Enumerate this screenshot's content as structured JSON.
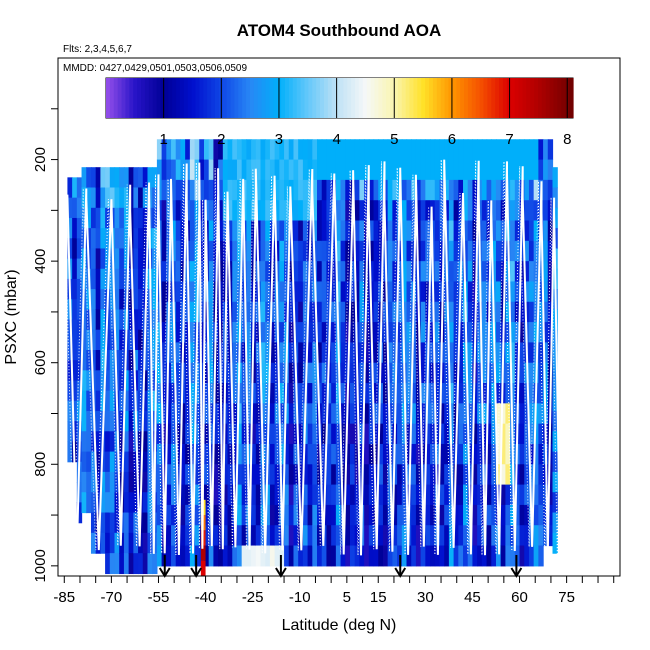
{
  "chart_data": {
    "type": "heatmap",
    "title": "ATOM4 Southbound AOA",
    "flights_note": "Flts: 2,3,4,5,6,7",
    "dates_note": "MMDD: 0427,0429,0501,0503,0506,0509",
    "xlabel": "Latitude (deg N)",
    "ylabel": "PSXC (mbar)",
    "xlim": [
      -87,
      92
    ],
    "ylim": [
      1020,
      0
    ],
    "x_ticks": [
      -85,
      -70,
      -55,
      -40,
      -25,
      -10,
      5,
      15,
      30,
      45,
      60,
      75
    ],
    "y_ticks": [
      200,
      400,
      600,
      800,
      1000
    ],
    "colorbar": {
      "min": 0,
      "max": 8.1,
      "ticks": [
        1,
        2,
        3,
        4,
        5,
        6,
        7,
        8
      ]
    },
    "arrow_latitudes": [
      -53,
      -43,
      -16,
      22,
      59
    ],
    "profile_latitudes": [
      -84,
      -78,
      -70,
      -64,
      -58,
      -55,
      -51,
      -46,
      -42,
      -40,
      -36,
      -33,
      -28,
      -24,
      -18,
      -13,
      -6,
      1,
      7,
      12,
      17,
      22,
      27,
      32,
      36,
      42,
      47,
      51,
      56,
      61,
      67,
      71
    ],
    "plume_max": 7.5
  }
}
